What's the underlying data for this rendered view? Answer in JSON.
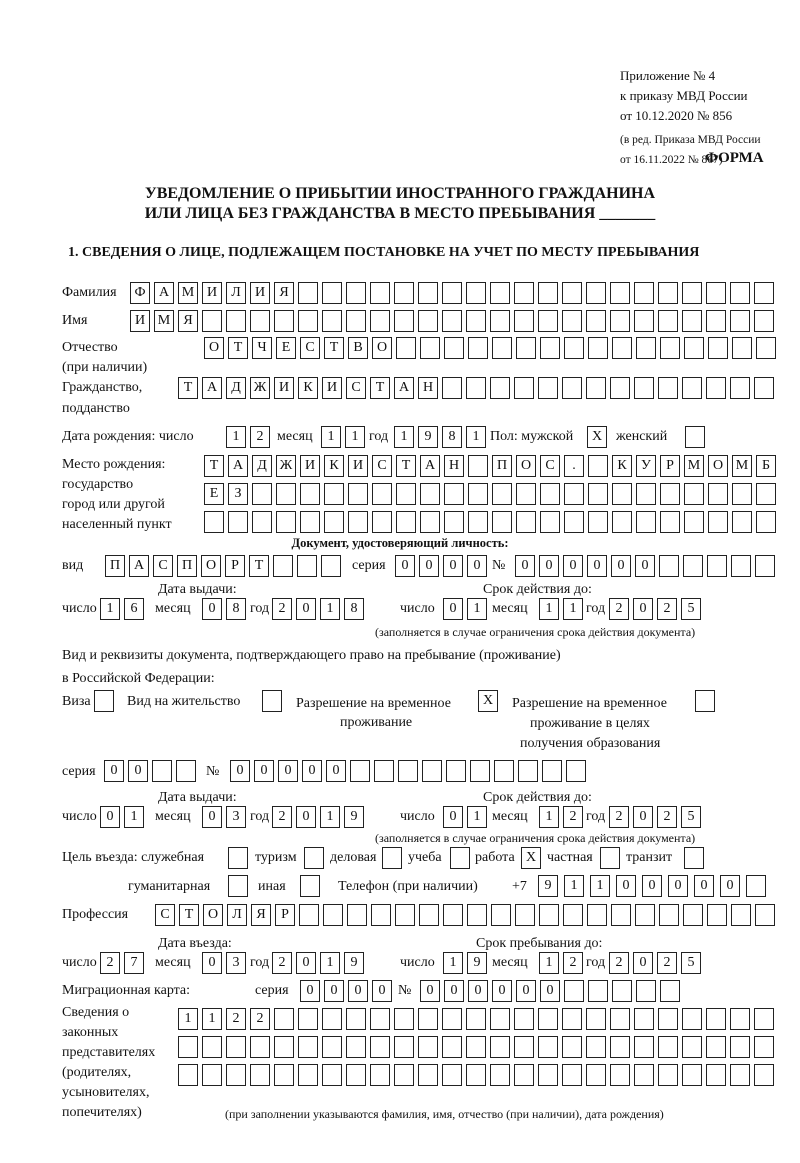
{
  "header": {
    "appendix": [
      "Приложение № 4",
      "к приказу МВД России",
      "от 10.12.2020 № 856"
    ],
    "revision": [
      "(в ред. Приказа МВД России",
      "от 16.11.2022 № 867)"
    ],
    "form_label": "ФОРМА",
    "title_line1": "УВЕДОМЛЕНИЕ О ПРИБЫТИИ ИНОСТРАННОГО ГРАЖДАНИНА",
    "title_line2": "ИЛИ ЛИЦА БЕЗ ГРАЖДАНСТВА В МЕСТО ПРЕБЫВАНИЯ _______",
    "section1": "1. СВЕДЕНИЯ О ЛИЦЕ, ПОДЛЕЖАЩЕМ ПОСТАНОВКЕ НА УЧЕТ ПО МЕСТУ ПРЕБЫВАНИЯ"
  },
  "labels": {
    "surname": "Фамилия",
    "name": "Имя",
    "patronymic": "Отчество",
    "patronymic_note": "(при наличии)",
    "citizenship": "Гражданство,",
    "citizenship2": "подданство",
    "birth_date": "Дата рождения:  число",
    "day": "число",
    "month": "месяц",
    "year": "год",
    "sex": "Пол: мужской",
    "female": "женский",
    "birth_place": [
      "Место рождения:",
      "государство",
      "город или другой",
      "населенный пункт"
    ],
    "id_doc": "Документ, удостоверяющий личность:",
    "kind": "вид",
    "series": "серия",
    "number": "№",
    "issue_date": "Дата выдачи:",
    "valid_until": "Срок действия до:",
    "validity_note": "(заполняется в случае ограничения срока действия документа)",
    "stay_doc": "Вид и реквизиты документа, подтверждающего право на пребывание (проживание)",
    "stay_doc2": "в Российской Федерации:",
    "visa": "Виза",
    "residence": "Вид на жительство",
    "temp_permit": "Разрешение на временное",
    "temp_permit2": "проживание",
    "temp_edu": "Разрешение на временное",
    "temp_edu2": "проживание в целях",
    "temp_edu3": "получения образования",
    "purpose": "Цель въезда: служебная",
    "tourism": "туризм",
    "business": "деловая",
    "study": "учеба",
    "work": "работа",
    "private": "частная",
    "transit": "транзит",
    "humanitarian": "гуманитарная",
    "other": "иная",
    "phone": "Телефон (при наличии)",
    "phone_prefix": "+7",
    "profession": "Профессия",
    "entry_date": "Дата въезда:",
    "stay_until": "Срок пребывания до:",
    "migration_card": "Миграционная карта:",
    "representatives": [
      "Сведения о",
      "законных",
      "представителях",
      "(родителях,",
      "усыновителях,",
      "попечителях)"
    ],
    "representatives_note": "(при заполнении указываются фамилия, имя, отчество (при наличии), дата рождения)"
  },
  "values": {
    "surname": "ФАМИЛИЯ",
    "name": "ИМЯ",
    "patronymic": "ОТЧЕСТВО",
    "citizenship": "ТАДЖИКИСТАН",
    "birth_day": "12",
    "birth_month": "11",
    "birth_year": "1981",
    "sex_male": "X",
    "sex_female": "",
    "birth_place1": "ТАДЖИКИСТАН ПОС. КУРМОМБ",
    "birth_place2": "ЕЗ",
    "birth_place3": "",
    "doc_kind": "ПАСПОРТ",
    "doc_series": "0000",
    "doc_number": "000000",
    "doc_issue_day": "16",
    "doc_issue_month": "08",
    "doc_issue_year": "2018",
    "doc_valid_day": "01",
    "doc_valid_month": "11",
    "doc_valid_year": "2025",
    "visa": "",
    "residence": "",
    "temp_permit": "X",
    "temp_edu": "",
    "stay_series": "00",
    "stay_number": "00000",
    "stay_issue_day": "01",
    "stay_issue_month": "03",
    "stay_issue_year": "2019",
    "stay_valid_day": "01",
    "stay_valid_month": "12",
    "stay_valid_year": "2025",
    "p_official": "",
    "p_tourism": "",
    "p_business": "",
    "p_study": "",
    "p_work": "X",
    "p_private": "",
    "p_transit": "",
    "p_humanitarian": "",
    "p_other": "",
    "phone": "91100000",
    "profession": "СТОЛЯР",
    "entry_day": "27",
    "entry_month": "03",
    "entry_year": "2019",
    "stay_day": "19",
    "stay_month": "12",
    "stay_year": "2025",
    "mc_series": "0000",
    "mc_number": "000000",
    "rep1": "1122",
    "rep2": "",
    "rep3": ""
  }
}
